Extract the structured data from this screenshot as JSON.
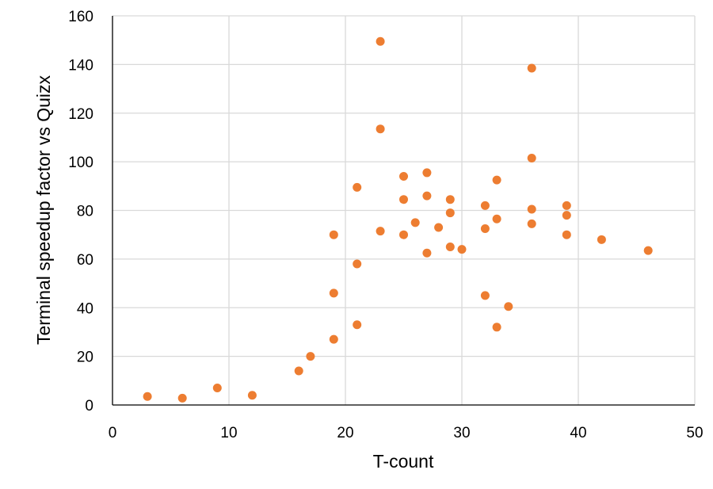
{
  "chart_data": {
    "type": "scatter",
    "title": "",
    "xlabel": "T-count",
    "ylabel": "Terminal speedup factor vs Quizx",
    "xlim": [
      0,
      50
    ],
    "ylim": [
      0,
      160
    ],
    "x_ticks": [
      0,
      10,
      20,
      30,
      40,
      50
    ],
    "y_ticks": [
      0,
      20,
      40,
      60,
      80,
      100,
      120,
      140,
      160
    ],
    "grid": true,
    "legend": "none",
    "marker_color": "#ED7D31",
    "series": [
      {
        "points": [
          [
            3,
            3.5
          ],
          [
            6,
            2.8
          ],
          [
            9,
            7
          ],
          [
            12,
            4
          ],
          [
            16,
            14
          ],
          [
            17,
            20
          ],
          [
            19,
            70
          ],
          [
            19,
            46
          ],
          [
            19,
            27
          ],
          [
            21,
            89.5
          ],
          [
            21,
            58
          ],
          [
            21,
            33
          ],
          [
            23,
            149.5
          ],
          [
            23,
            113.5
          ],
          [
            23,
            71.5
          ],
          [
            25,
            94
          ],
          [
            25,
            84.5
          ],
          [
            25,
            70
          ],
          [
            26,
            75
          ],
          [
            27,
            95.5
          ],
          [
            27,
            86
          ],
          [
            27,
            62.5
          ],
          [
            28,
            73
          ],
          [
            29,
            84.5
          ],
          [
            29,
            79
          ],
          [
            29,
            65
          ],
          [
            30,
            64
          ],
          [
            32,
            82
          ],
          [
            32,
            72.5
          ],
          [
            32,
            45
          ],
          [
            33,
            92.5
          ],
          [
            33,
            76.5
          ],
          [
            33,
            32
          ],
          [
            34,
            40.5
          ],
          [
            36,
            138.5
          ],
          [
            36,
            101.5
          ],
          [
            36,
            80.5
          ],
          [
            36,
            74.5
          ],
          [
            39,
            82
          ],
          [
            39,
            78
          ],
          [
            39,
            70
          ],
          [
            42,
            68
          ],
          [
            46,
            63.5
          ]
        ]
      }
    ]
  }
}
